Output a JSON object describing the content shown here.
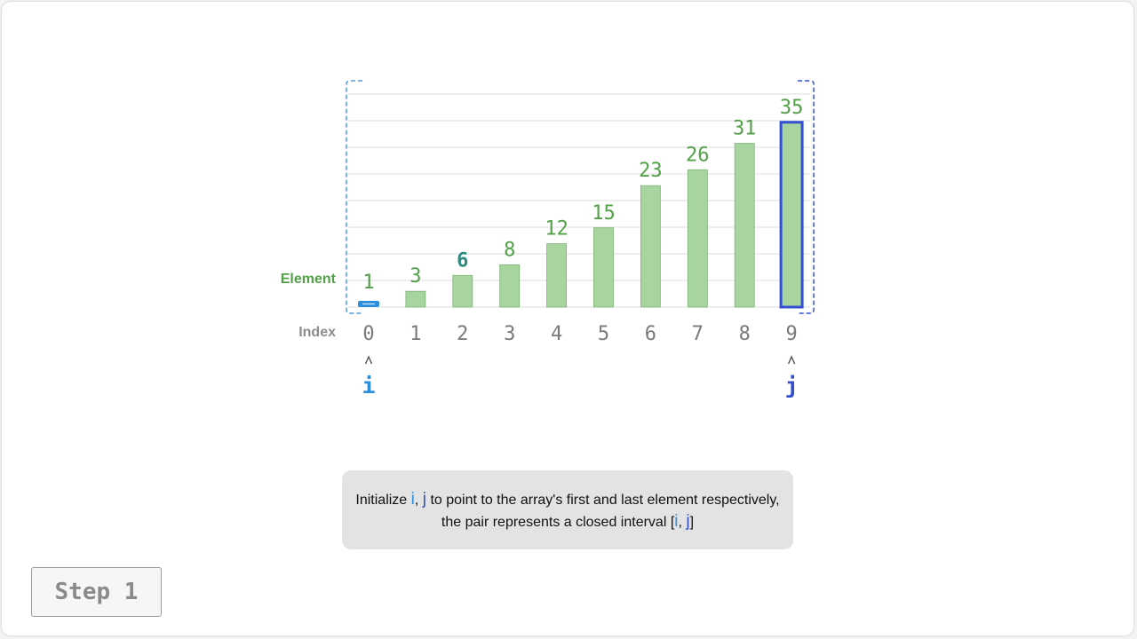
{
  "labels": {
    "element": "Element",
    "index": "Index"
  },
  "array": {
    "values": [
      1,
      3,
      6,
      8,
      12,
      15,
      23,
      26,
      31,
      35
    ],
    "indices": [
      "0",
      "1",
      "2",
      "3",
      "4",
      "5",
      "6",
      "7",
      "8",
      "9"
    ],
    "highlighted_value_index": 2
  },
  "pointers": {
    "i": {
      "label": "i",
      "index": 0,
      "color": "#2d8fdc"
    },
    "j": {
      "label": "j",
      "index": 9,
      "color": "#3450d0"
    }
  },
  "colors": {
    "bar_fill": "#a8d4a0",
    "bar_stroke": "#7ab472",
    "value_text": "#52a048",
    "highlight_value_text": "#2f8a80",
    "index_text": "#7a7a7a",
    "grid": "#dcdcdc",
    "interval_bracket": "#4a9ce0"
  },
  "caption": {
    "part1": "Initialize ",
    "i": "i",
    "comma1": ", ",
    "j": "j",
    "part2": " to point to the array's first and last element respectively,",
    "part3": "the pair represents a closed interval [",
    "i2": "i",
    "comma2": ", ",
    "j2": "j",
    "part4": "]"
  },
  "step": {
    "label": "Step 1"
  }
}
